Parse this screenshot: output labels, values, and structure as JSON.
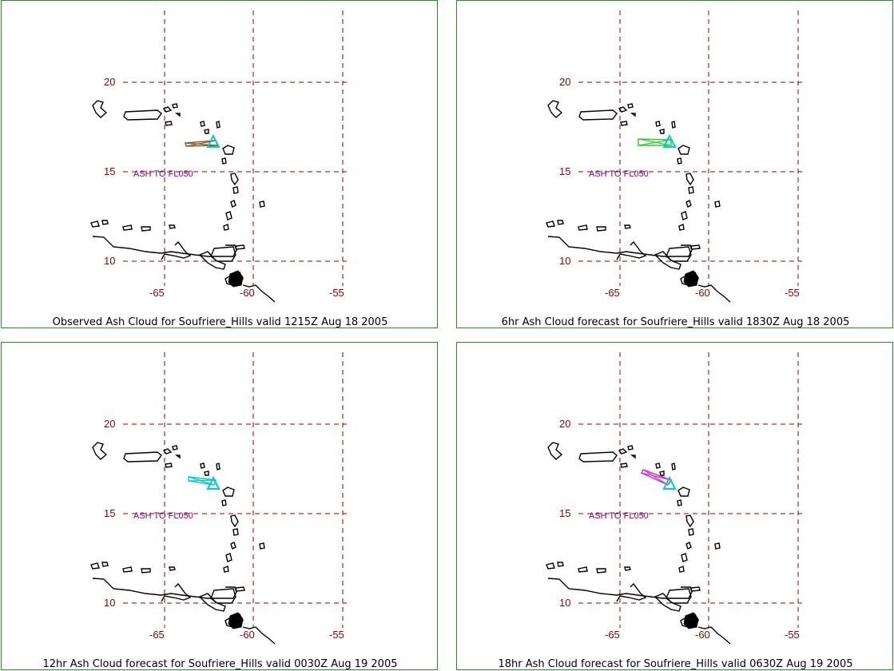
{
  "panels": [
    {
      "caption": "Observed Ash Cloud for Soufriere_Hills valid 1215Z Aug 18 2005",
      "cloud_color": "#8b5a2b",
      "cloud_level": "ASH TO FL050"
    },
    {
      "caption": "6hr Ash Cloud forecast for Soufriere_Hills valid 1830Z Aug 18 2005",
      "cloud_color": "#33cc33",
      "cloud_level": "ASH TO FL050"
    },
    {
      "caption": "12hr Ash Cloud forecast for Soufriere_Hills valid 0030Z Aug 19 2005",
      "cloud_color": "#00cccc",
      "cloud_level": "ASH TO FL050"
    },
    {
      "caption": "18hr Ash Cloud forecast for Soufriere_Hills valid 0630Z Aug 19 2005",
      "cloud_color": "#cc33cc",
      "cloud_level": "ASH TO FL050"
    }
  ],
  "latitude_labels": [
    "20",
    "15",
    "10"
  ],
  "longitude_labels": [
    "-65",
    "-60",
    "-55"
  ],
  "colors": {
    "grid": "#8b0000",
    "coast": "#000000",
    "volcano_marker": "#00cccc",
    "frame": "#2a8a2a"
  }
}
